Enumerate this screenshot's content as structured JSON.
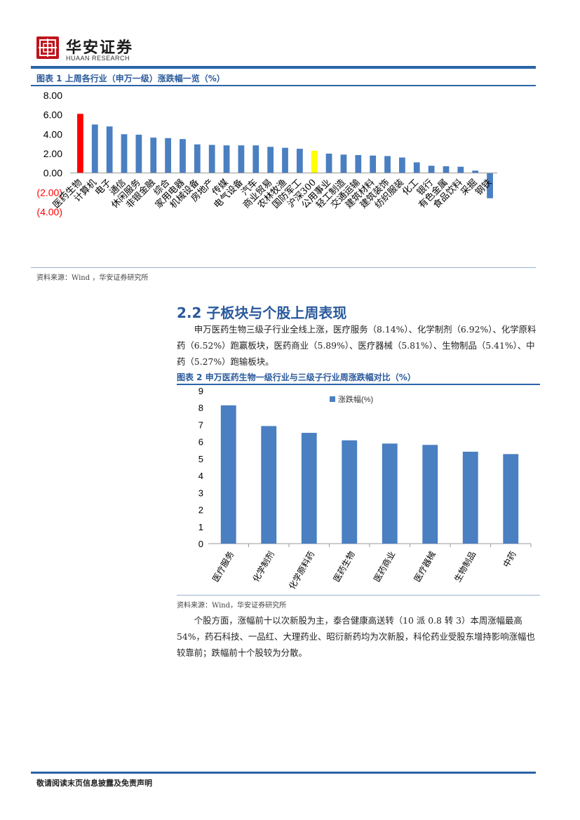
{
  "header": {
    "logo_text": "华安证券",
    "logo_sub": "HUAAN RESEARCH"
  },
  "figure1": {
    "title": "图表 1 上周各行业（申万一级）涨跌幅一览（%）",
    "source": "资料来源：Wind ，华安证券研究所"
  },
  "section": {
    "title": "2.2 子板块与个股上周表现",
    "para1": "申万医药生物三级子行业全线上涨，医疗服务（8.14%）、化学制剂（6.92%）、化学原料药（6.52%）跑赢板块，医药商业（5.89%）、医疗器械（5.81%）、生物制品（5.41%）、中药（5.27%）跑输板块。"
  },
  "figure2": {
    "title": "图表 2 申万医药生物一级行业与三级子行业周涨跌幅对比（%）",
    "source": "资料来源：Wind，华安证券研究所"
  },
  "para2": "个股方面，涨幅前十以次新股为主，泰合健康高送转（10 派 0.8 转 3）本周涨幅最高 54%，药石科技、一品红、大理药业、昭衍新药均为次新股，科伦药业受股东增持影响涨幅也较靠前；跌幅前十个股较为分散。",
  "footer": {
    "disclaimer": "敬请阅读末页信息披露及免责声明"
  },
  "colors": {
    "brand_red": "#c0141c",
    "accent_blue": "#2a64a8",
    "bar_blue": "#4a7fc1",
    "highlight_red": "#ff0000",
    "highlight_yellow": "#ffff00"
  },
  "chart_data": [
    {
      "type": "bar",
      "categories": [
        "医药生物",
        "计算机",
        "电子",
        "通信",
        "休闲服务",
        "非银金融",
        "综合",
        "家用电器",
        "机械设备",
        "房地产",
        "传媒",
        "电气设备",
        "汽车",
        "商业贸易",
        "农林牧渔",
        "国防军工",
        "沪深300",
        "公用事业",
        "轻工制造",
        "交通运输",
        "建筑材料",
        "建筑装饰",
        "纺织服装",
        "化工",
        "银行",
        "有色金属",
        "食品饮料",
        "采掘",
        "钢铁"
      ],
      "values": [
        6.1,
        5.0,
        4.8,
        4.0,
        3.95,
        3.65,
        3.6,
        3.5,
        2.95,
        2.9,
        2.85,
        2.85,
        2.85,
        2.7,
        2.6,
        2.5,
        2.3,
        2.0,
        1.9,
        1.85,
        1.8,
        1.75,
        1.6,
        1.1,
        0.75,
        0.7,
        0.65,
        0.25,
        -2.6
      ],
      "highlight": {
        "医药生物": "red",
        "沪深300": "yellow"
      },
      "y_ticks": [
        "8.00",
        "6.00",
        "4.00",
        "2.00",
        "0.00",
        "(2.00)",
        "(4.00)"
      ],
      "ylim": [
        -4,
        8
      ]
    },
    {
      "type": "bar",
      "categories": [
        "医疗服务",
        "化学制剂",
        "化学原料药",
        "医药生物",
        "医药商业",
        "医疗器械",
        "生物制品",
        "中药"
      ],
      "series": [
        {
          "name": "涨跌幅(%)",
          "values": [
            8.14,
            6.92,
            6.52,
            6.08,
            5.89,
            5.81,
            5.41,
            5.27
          ]
        }
      ],
      "y_ticks": [
        "0",
        "1",
        "2",
        "3",
        "4",
        "5",
        "6",
        "7",
        "8",
        "9"
      ],
      "ylim": [
        0,
        9
      ],
      "legend": "top-center"
    }
  ]
}
